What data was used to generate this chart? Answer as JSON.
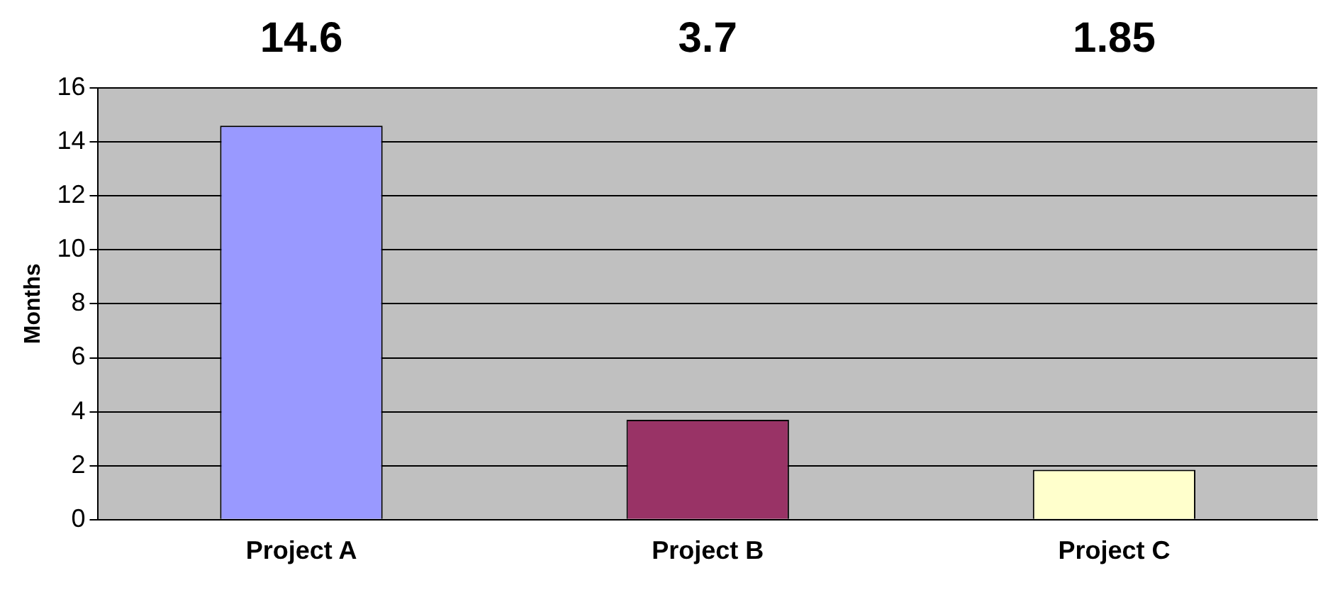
{
  "chart_data": {
    "type": "bar",
    "ylabel": "Months",
    "categories": [
      "Project A",
      "Project B",
      "Project C"
    ],
    "values": [
      14.6,
      3.7,
      1.85
    ],
    "colors": [
      "#9999ff",
      "#993366",
      "#ffffcc"
    ],
    "ylim": [
      0,
      16
    ],
    "yticks": [
      0,
      2,
      4,
      6,
      8,
      10,
      12,
      14,
      16
    ],
    "grid": "y",
    "annotations": [
      "14.6",
      "3.7",
      "1.85"
    ]
  }
}
